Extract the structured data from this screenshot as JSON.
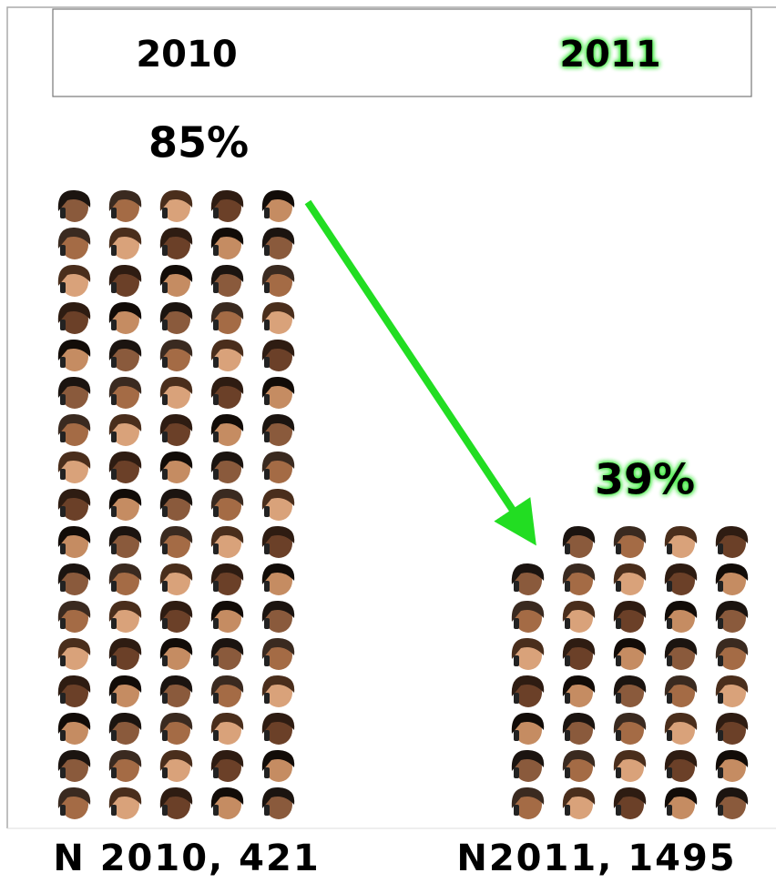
{
  "chart_data": {
    "type": "pictograph",
    "categories": [
      "2010",
      "2011"
    ],
    "values": [
      85,
      39
    ],
    "value_labels": [
      "85%",
      "39%"
    ],
    "sample_labels": [
      "N 2010, 421",
      "N2011, 1495"
    ],
    "colors": [
      "#000000",
      "#2ee62e"
    ]
  }
}
